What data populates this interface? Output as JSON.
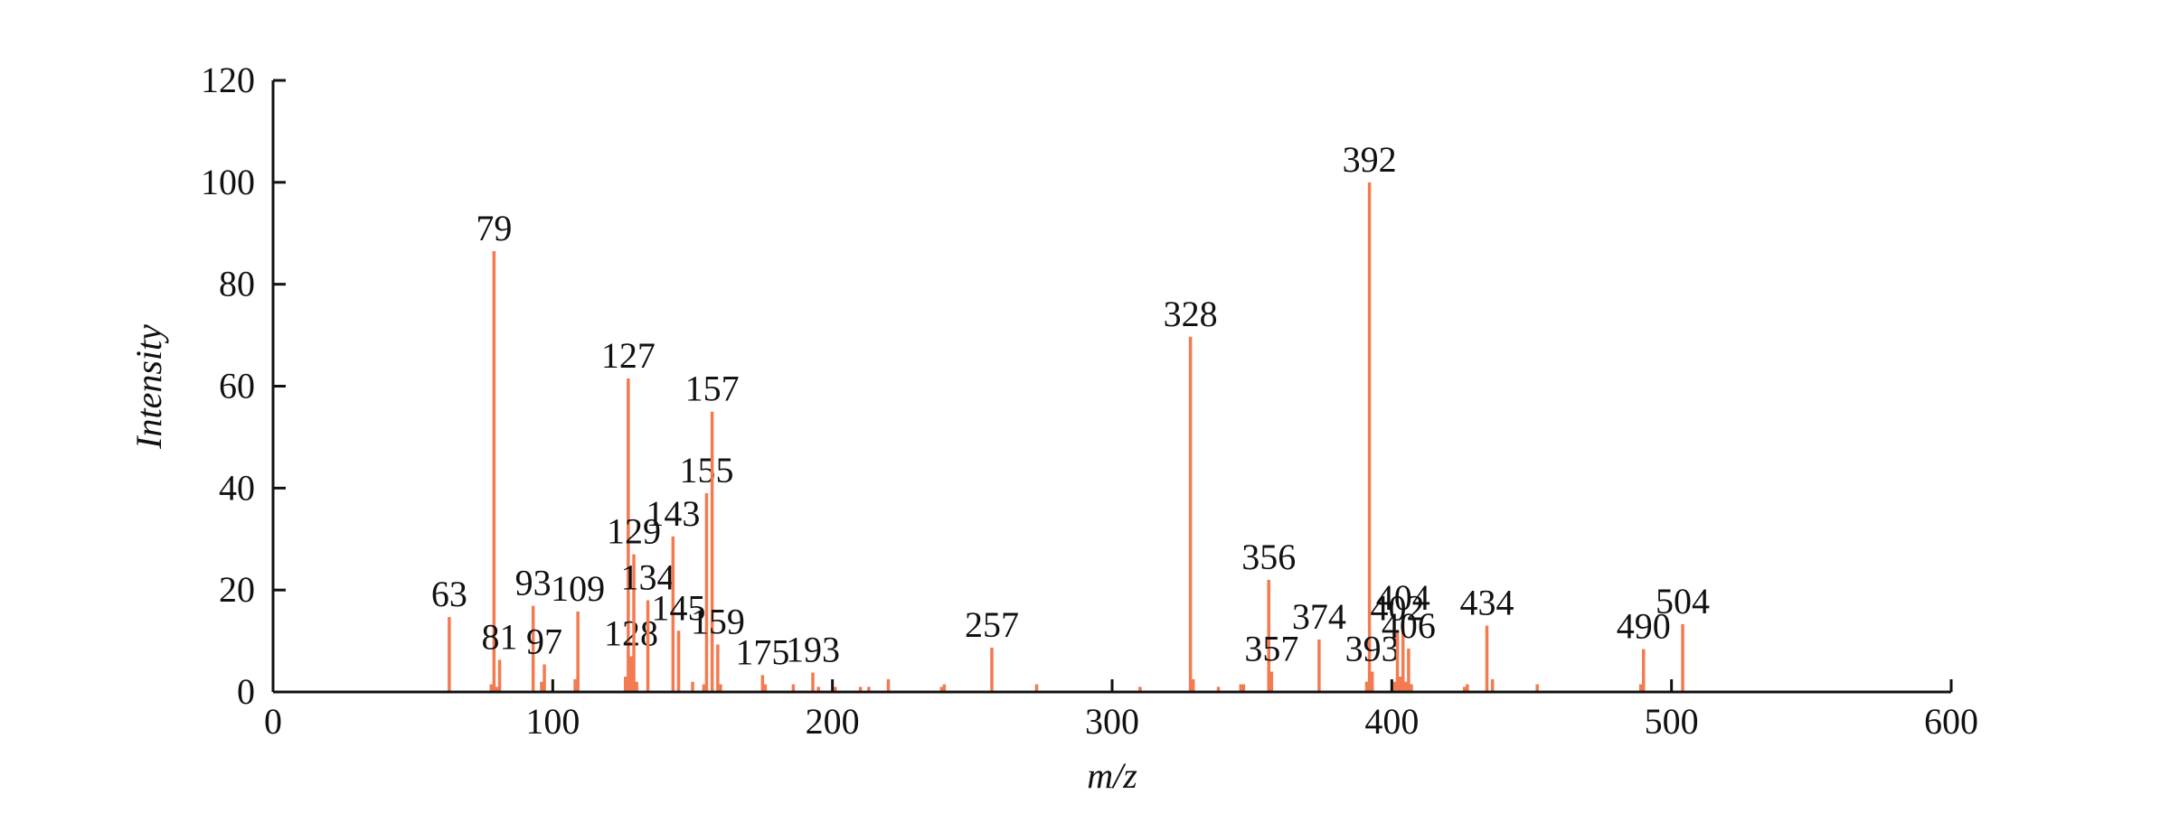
{
  "chart_data": {
    "type": "stem",
    "xlabel": "m/z",
    "ylabel": "Intensity",
    "xlim": [
      0,
      600
    ],
    "xticks": [
      0,
      100,
      200,
      300,
      400,
      500,
      600
    ],
    "ylim": [
      0,
      120
    ],
    "yticks": [
      0,
      20,
      40,
      60,
      80,
      100,
      120
    ],
    "color": "#f47a50",
    "labeled_peaks": {
      "x": [
        63,
        79,
        81,
        93,
        97,
        109,
        127,
        128,
        129,
        134,
        143,
        145,
        155,
        157,
        159,
        175,
        193,
        257,
        328,
        356,
        357,
        374,
        392,
        393,
        402,
        404,
        406,
        434,
        490,
        504
      ],
      "values": [
        14.7,
        86.5,
        6.3,
        16.9,
        5.4,
        15.8,
        61.5,
        7,
        27,
        18,
        30.5,
        12,
        39,
        55,
        9.3,
        3.3,
        3.8,
        8.7,
        69.7,
        22,
        4,
        10.3,
        100,
        4,
        12,
        14,
        8.5,
        13,
        8.4,
        13.3
      ]
    },
    "minor_peaks": {
      "x": [
        78,
        80,
        96,
        108,
        126,
        130,
        150,
        154,
        160,
        176,
        186,
        195,
        201,
        210,
        213,
        220,
        239,
        240,
        273,
        310,
        329,
        338,
        346,
        347,
        391,
        401,
        403,
        405,
        407,
        426,
        427,
        436,
        452,
        489
      ],
      "values": [
        1.5,
        1,
        2,
        2.5,
        3,
        2,
        2,
        1.5,
        1.5,
        1.5,
        1.5,
        1,
        1,
        1,
        1,
        2.5,
        1,
        1.5,
        1.5,
        1,
        2.5,
        1,
        1.5,
        1.5,
        2,
        2,
        3,
        2,
        1.5,
        1,
        1.5,
        2.5,
        1.5,
        1.5
      ]
    }
  }
}
